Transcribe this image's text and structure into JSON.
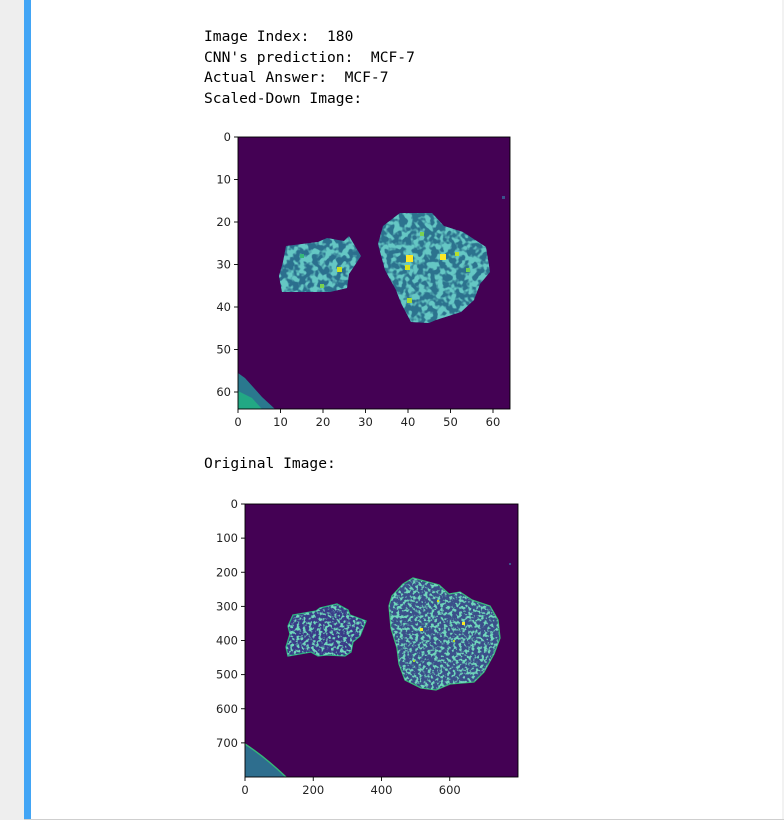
{
  "output": {
    "line1": "Image Index:  180",
    "line2": "CNN's prediction:  MCF-7",
    "line3": "Actual Answer:  MCF-7",
    "line4": "Scaled-Down Image:",
    "original_label": "Original Image:"
  },
  "colors": {
    "cell_bar": "#42a5f5",
    "viridis_background": "#440154",
    "viridis_teal": "#21918c",
    "viridis_yellow": "#fde725"
  },
  "plot_scaled": {
    "x_ticks": [
      "0",
      "10",
      "20",
      "30",
      "40",
      "50",
      "60"
    ],
    "y_ticks": [
      "0",
      "10",
      "20",
      "30",
      "40",
      "50",
      "60"
    ],
    "x_range": [
      0,
      64
    ],
    "y_range": [
      0,
      64
    ]
  },
  "plot_original": {
    "x_ticks": [
      "0",
      "200",
      "400",
      "600"
    ],
    "y_ticks": [
      "0",
      "100",
      "200",
      "300",
      "400",
      "500",
      "600",
      "700"
    ],
    "x_range": [
      0,
      800
    ],
    "y_range": [
      0,
      800
    ]
  }
}
